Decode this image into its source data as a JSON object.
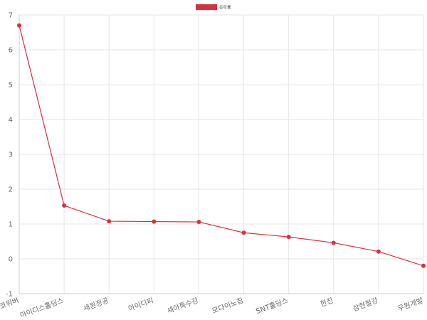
{
  "chart_data": {
    "type": "line",
    "categories": [
      "코위버",
      "아이디스홀딩스",
      "세원정공",
      "아이디피",
      "세아특수강",
      "모다이노칩",
      "SNT홀딩스",
      "한진",
      "삼현철강",
      "우원개발"
    ],
    "series": [
      {
        "name": "등락률",
        "values": [
          6.7,
          1.53,
          1.08,
          1.07,
          1.06,
          0.75,
          0.63,
          0.46,
          0.21,
          -0.2
        ],
        "color": "#d6323c"
      }
    ],
    "ylim": [
      -1,
      7
    ],
    "yticks": [
      -1,
      0,
      1,
      2,
      3,
      4,
      5,
      6,
      7
    ],
    "grid": true,
    "legend": "top-center"
  }
}
